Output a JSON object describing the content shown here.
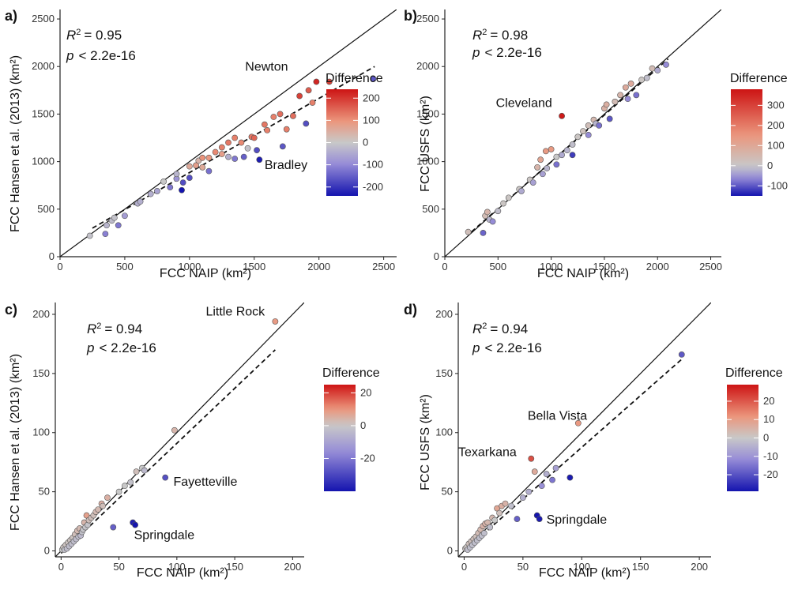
{
  "chart_data": [
    {
      "panel_label": "a)",
      "type": "scatter",
      "xlabel": "FCC NAIP (km²)",
      "ylabel": "FCC Hansen et al. (2013) (km²)",
      "xlim": [
        0,
        2600
      ],
      "ylim": [
        0,
        2600
      ],
      "xticks": [
        "0",
        "500",
        "1000",
        "1500",
        "2000",
        "2500"
      ],
      "yticks": [
        "0",
        "500",
        "1000",
        "1500",
        "2000",
        "2500"
      ],
      "stats": {
        "r2_label": "R",
        "r2_value": "= 0.95",
        "p_label": "p",
        "p_value": "< 2.2e-16"
      },
      "legend": {
        "title": "Difference",
        "ticks": [
          "200",
          "100",
          "0",
          "-100",
          "-200"
        ],
        "min": -240,
        "max": 240,
        "tick_values": [
          200,
          100,
          0,
          -100,
          -200
        ]
      },
      "reference_line": {
        "x": [
          0,
          2600
        ],
        "y": [
          0,
          2600
        ]
      },
      "fit_line": {
        "x": [
          250,
          2430
        ],
        "y": [
          300,
          2000
        ]
      },
      "annotations": [
        {
          "text": "Newton",
          "x": 1430,
          "y": 1955
        },
        {
          "text": "Bradley",
          "x": 1580,
          "y": 920
        }
      ],
      "points": [
        [
          230,
          220,
          -10
        ],
        [
          350,
          240,
          -110
        ],
        [
          360,
          330,
          -30
        ],
        [
          400,
          380,
          -20
        ],
        [
          420,
          410,
          -10
        ],
        [
          450,
          330,
          -120
        ],
        [
          500,
          430,
          -70
        ],
        [
          600,
          560,
          -40
        ],
        [
          620,
          580,
          -40
        ],
        [
          700,
          660,
          -40
        ],
        [
          750,
          690,
          -60
        ],
        [
          800,
          790,
          0
        ],
        [
          850,
          730,
          -120
        ],
        [
          900,
          820,
          -80
        ],
        [
          900,
          870,
          -30
        ],
        [
          940,
          700,
          -240
        ],
        [
          950,
          780,
          -170
        ],
        [
          1000,
          830,
          -170
        ],
        [
          1000,
          950,
          60
        ],
        [
          1050,
          960,
          80
        ],
        [
          1070,
          1010,
          40
        ],
        [
          1100,
          940,
          60
        ],
        [
          1100,
          1040,
          100
        ],
        [
          1150,
          1040,
          90
        ],
        [
          1150,
          900,
          -130
        ],
        [
          1200,
          1100,
          110
        ],
        [
          1250,
          1080,
          80
        ],
        [
          1250,
          1150,
          120
        ],
        [
          1300,
          1050,
          -40
        ],
        [
          1300,
          1200,
          130
        ],
        [
          1350,
          1250,
          120
        ],
        [
          1350,
          1030,
          -120
        ],
        [
          1400,
          1200,
          110
        ],
        [
          1420,
          1050,
          -150
        ],
        [
          1450,
          1140,
          -10
        ],
        [
          1480,
          1260,
          130
        ],
        [
          1500,
          1250,
          150
        ],
        [
          1520,
          1120,
          -170
        ],
        [
          1540,
          1020,
          -230
        ],
        [
          1580,
          1390,
          130
        ],
        [
          1600,
          1330,
          120
        ],
        [
          1650,
          1470,
          120
        ],
        [
          1700,
          1500,
          140
        ],
        [
          1720,
          1160,
          -160
        ],
        [
          1750,
          1340,
          120
        ],
        [
          1800,
          1480,
          140
        ],
        [
          1850,
          1690,
          190
        ],
        [
          1900,
          1400,
          -170
        ],
        [
          1920,
          1750,
          160
        ],
        [
          1950,
          1620,
          120
        ],
        [
          1980,
          1840,
          220
        ],
        [
          2080,
          1840,
          190
        ],
        [
          2420,
          1870,
          -160
        ]
      ]
    },
    {
      "panel_label": "b)",
      "type": "scatter",
      "xlabel": "FCC NAIP (km²)",
      "ylabel": "FCC USFS (km²)",
      "xlim": [
        0,
        2600
      ],
      "ylim": [
        0,
        2600
      ],
      "xticks": [
        "0",
        "500",
        "1000",
        "1500",
        "2000",
        "2500"
      ],
      "yticks": [
        "0",
        "500",
        "1000",
        "1500",
        "2000",
        "2500"
      ],
      "stats": {
        "r2_label": "R",
        "r2_value": "= 0.98",
        "p_label": "p",
        "p_value": "< 2.2e-16"
      },
      "legend": {
        "title": "Difference",
        "ticks": [
          "300",
          "200",
          "100",
          "0",
          "-100"
        ],
        "min": -150,
        "max": 380,
        "tick_values": [
          300,
          200,
          100,
          0,
          -100
        ]
      },
      "reference_line": {
        "x": [
          0,
          2600
        ],
        "y": [
          0,
          2600
        ]
      },
      "fit_line": {
        "x": [
          250,
          2100
        ],
        "y": [
          260,
          2080
        ]
      },
      "annotations": [
        {
          "text": "Cleveland",
          "x": 480,
          "y": 1575
        }
      ],
      "points": [
        [
          220,
          260,
          30
        ],
        [
          360,
          250,
          -90
        ],
        [
          380,
          430,
          40
        ],
        [
          400,
          470,
          60
        ],
        [
          420,
          390,
          -20
        ],
        [
          450,
          370,
          -60
        ],
        [
          500,
          480,
          -10
        ],
        [
          550,
          560,
          10
        ],
        [
          600,
          620,
          10
        ],
        [
          700,
          710,
          10
        ],
        [
          720,
          690,
          -30
        ],
        [
          800,
          810,
          10
        ],
        [
          830,
          780,
          -40
        ],
        [
          870,
          940,
          60
        ],
        [
          900,
          1020,
          110
        ],
        [
          920,
          870,
          -40
        ],
        [
          950,
          1110,
          140
        ],
        [
          960,
          930,
          -20
        ],
        [
          1000,
          1130,
          140
        ],
        [
          1050,
          970,
          -80
        ],
        [
          1050,
          1050,
          0
        ],
        [
          1100,
          1480,
          370
        ],
        [
          1100,
          1070,
          -30
        ],
        [
          1150,
          1120,
          -20
        ],
        [
          1200,
          1180,
          -10
        ],
        [
          1200,
          1070,
          -120
        ],
        [
          1250,
          1260,
          10
        ],
        [
          1300,
          1320,
          20
        ],
        [
          1350,
          1280,
          -60
        ],
        [
          1350,
          1380,
          30
        ],
        [
          1400,
          1440,
          50
        ],
        [
          1420,
          1400,
          -20
        ],
        [
          1450,
          1380,
          -80
        ],
        [
          1500,
          1560,
          70
        ],
        [
          1520,
          1600,
          80
        ],
        [
          1550,
          1450,
          -100
        ],
        [
          1600,
          1630,
          40
        ],
        [
          1650,
          1700,
          60
        ],
        [
          1700,
          1780,
          90
        ],
        [
          1720,
          1660,
          -60
        ],
        [
          1750,
          1820,
          90
        ],
        [
          1800,
          1700,
          -80
        ],
        [
          1850,
          1860,
          10
        ],
        [
          1900,
          1880,
          -10
        ],
        [
          1950,
          1980,
          40
        ],
        [
          2000,
          1960,
          -30
        ],
        [
          2080,
          2020,
          -60
        ]
      ]
    },
    {
      "panel_label": "c)",
      "type": "scatter",
      "xlabel": "FCC NAIP (km²)",
      "ylabel": "FCC Hansen et al. (2013) (km²)",
      "xlim": [
        -5,
        210
      ],
      "ylim": [
        -5,
        210
      ],
      "xticks": [
        "0",
        "50",
        "100",
        "150",
        "200"
      ],
      "yticks": [
        "0",
        "50",
        "100",
        "150",
        "200"
      ],
      "stats": {
        "r2_label": "R",
        "r2_value": "= 0.94",
        "p_label": "p",
        "p_value": "< 2.2e-16"
      },
      "legend": {
        "title": "Difference",
        "ticks": [
          "20",
          "0",
          "-20"
        ],
        "min": -40,
        "max": 25,
        "tick_values": [
          20,
          0,
          -20
        ]
      },
      "reference_line": {
        "x": [
          -5,
          210
        ],
        "y": [
          -5,
          210
        ]
      },
      "fit_line": {
        "x": [
          0,
          185
        ],
        "y": [
          -2,
          170
        ]
      },
      "annotations": [
        {
          "text": "Little Rock",
          "x": 125,
          "y": 199
        },
        {
          "text": "Fayetteville",
          "x": 97,
          "y": 55
        },
        {
          "text": "Springdale",
          "x": 63,
          "y": 10
        }
      ],
      "points": [
        [
          1,
          1,
          0
        ],
        [
          2,
          3,
          1
        ],
        [
          3,
          1,
          -2
        ],
        [
          4,
          5,
          1
        ],
        [
          5,
          2,
          -3
        ],
        [
          6,
          7,
          1
        ],
        [
          7,
          4,
          -3
        ],
        [
          8,
          9,
          1
        ],
        [
          9,
          6,
          -3
        ],
        [
          10,
          11,
          1
        ],
        [
          11,
          8,
          -3
        ],
        [
          12,
          14,
          2
        ],
        [
          13,
          10,
          -3
        ],
        [
          14,
          17,
          3
        ],
        [
          15,
          12,
          -3
        ],
        [
          16,
          19,
          3
        ],
        [
          17,
          13,
          -4
        ],
        [
          18,
          16,
          -2
        ],
        [
          19,
          18,
          -1
        ],
        [
          20,
          24,
          4
        ],
        [
          21,
          20,
          -1
        ],
        [
          22,
          30,
          8
        ],
        [
          23,
          22,
          -1
        ],
        [
          24,
          26,
          2
        ],
        [
          26,
          28,
          2
        ],
        [
          28,
          30,
          2
        ],
        [
          30,
          33,
          3
        ],
        [
          32,
          35,
          3
        ],
        [
          35,
          40,
          5
        ],
        [
          36,
          38,
          2
        ],
        [
          40,
          45,
          5
        ],
        [
          45,
          20,
          -25
        ],
        [
          50,
          50,
          0
        ],
        [
          55,
          55,
          0
        ],
        [
          60,
          58,
          -2
        ],
        [
          62,
          24,
          -38
        ],
        [
          64,
          22,
          -40
        ],
        [
          65,
          67,
          2
        ],
        [
          70,
          70,
          0
        ],
        [
          72,
          68,
          -4
        ],
        [
          90,
          62,
          -28
        ],
        [
          98,
          102,
          4
        ],
        [
          185,
          194,
          9
        ]
      ]
    },
    {
      "panel_label": "d)",
      "type": "scatter",
      "xlabel": "FCC NAIP (km²)",
      "ylabel": "FCC USFS (km²)",
      "xlim": [
        -5,
        210
      ],
      "ylim": [
        -5,
        210
      ],
      "xticks": [
        "0",
        "50",
        "100",
        "150",
        "200"
      ],
      "yticks": [
        "0",
        "50",
        "100",
        "150",
        "200"
      ],
      "stats": {
        "r2_label": "R",
        "r2_value": "= 0.94",
        "p_label": "p",
        "p_value": "< 2.2e-16"
      },
      "legend": {
        "title": "Difference",
        "ticks": [
          "20",
          "10",
          "0",
          "-10",
          "-20"
        ],
        "min": -29,
        "max": 29,
        "tick_values": [
          20,
          10,
          0,
          -10,
          -20
        ]
      },
      "reference_line": {
        "x": [
          -5,
          210
        ],
        "y": [
          -5,
          210
        ]
      },
      "fit_line": {
        "x": [
          0,
          185
        ],
        "y": [
          0,
          162
        ]
      },
      "annotations": [
        {
          "text": "Bella Vista",
          "x": 54,
          "y": 111
        },
        {
          "text": "Texarkana",
          "x": -5,
          "y": 80
        },
        {
          "text": "Springdale",
          "x": 70,
          "y": 23
        }
      ],
      "points": [
        [
          1,
          2,
          1
        ],
        [
          2,
          3,
          1
        ],
        [
          3,
          1,
          -2
        ],
        [
          4,
          6,
          2
        ],
        [
          5,
          3,
          -2
        ],
        [
          6,
          8,
          2
        ],
        [
          7,
          5,
          -2
        ],
        [
          8,
          10,
          2
        ],
        [
          9,
          7,
          -2
        ],
        [
          10,
          12,
          2
        ],
        [
          11,
          9,
          -2
        ],
        [
          12,
          15,
          3
        ],
        [
          13,
          11,
          -2
        ],
        [
          14,
          18,
          4
        ],
        [
          15,
          13,
          -2
        ],
        [
          16,
          21,
          5
        ],
        [
          17,
          15,
          -2
        ],
        [
          18,
          23,
          5
        ],
        [
          20,
          24,
          4
        ],
        [
          22,
          20,
          -2
        ],
        [
          24,
          28,
          4
        ],
        [
          26,
          26,
          0
        ],
        [
          28,
          36,
          8
        ],
        [
          30,
          32,
          2
        ],
        [
          32,
          38,
          6
        ],
        [
          35,
          40,
          5
        ],
        [
          40,
          38,
          -2
        ],
        [
          45,
          27,
          -18
        ],
        [
          50,
          45,
          -5
        ],
        [
          55,
          50,
          -5
        ],
        [
          57,
          78,
          21
        ],
        [
          60,
          67,
          7
        ],
        [
          62,
          30,
          -32
        ],
        [
          64,
          27,
          -28
        ],
        [
          66,
          55,
          -11
        ],
        [
          70,
          65,
          -5
        ],
        [
          75,
          60,
          -15
        ],
        [
          78,
          70,
          -8
        ],
        [
          90,
          62,
          -28
        ],
        [
          97,
          108,
          11
        ],
        [
          185,
          166,
          -19
        ]
      ]
    }
  ]
}
